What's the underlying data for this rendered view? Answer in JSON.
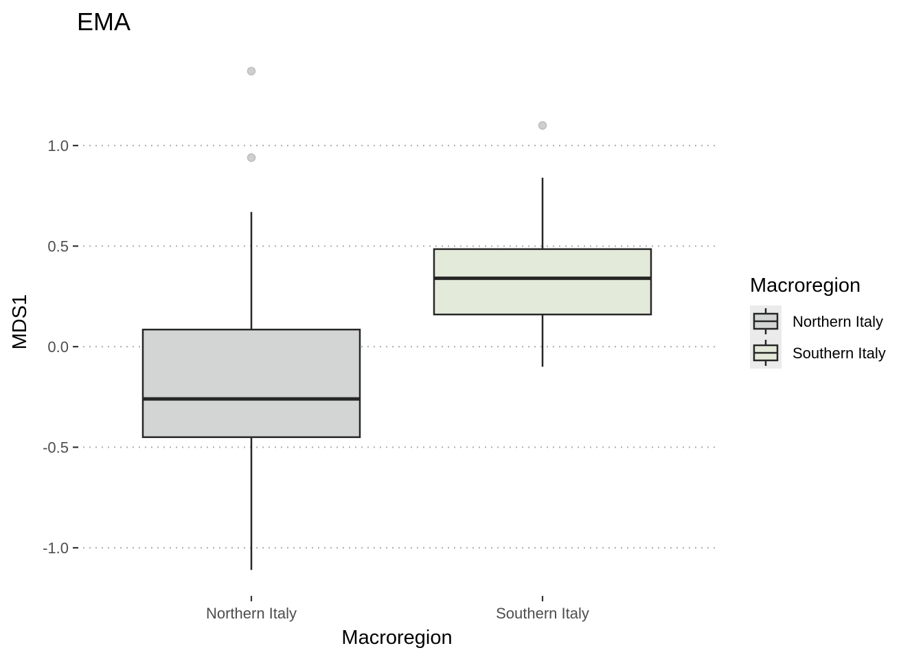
{
  "chart_data": {
    "type": "boxplot",
    "title": "EMA",
    "xlabel": "Macroregion",
    "ylabel": "MDS1",
    "categories": [
      "Northern Italy",
      "Southern Italy"
    ],
    "ylim": [
      -1.15,
      1.48
    ],
    "y_ticks": [
      1.0,
      0.5,
      0.0,
      -0.5,
      -1.0
    ],
    "y_tick_labels": [
      "1.0",
      "0.5",
      "0.0",
      "-0.5",
      "-1.0"
    ],
    "grid": "horizontal dotted",
    "legend": {
      "title": "Macroregion",
      "position": "right",
      "entries": [
        "Northern Italy",
        "Southern Italy"
      ]
    },
    "boxes": [
      {
        "name": "Northern Italy",
        "whisker_low": -1.11,
        "q1": -0.45,
        "median": -0.26,
        "q3": 0.085,
        "whisker_high": 0.67,
        "outliers": [
          1.37,
          0.94
        ],
        "fill": "#d3d5d4"
      },
      {
        "name": "Southern Italy",
        "whisker_low": -0.1,
        "q1": 0.16,
        "median": 0.34,
        "q3": 0.485,
        "whisker_high": 0.84,
        "outliers": [
          1.1
        ],
        "fill": "#e3eada"
      }
    ],
    "colors": {
      "box_stroke": "#262626",
      "outlier": "#bdbdbd",
      "grid": "#b3b3b3",
      "legend_bg": "#ebebeb"
    }
  }
}
